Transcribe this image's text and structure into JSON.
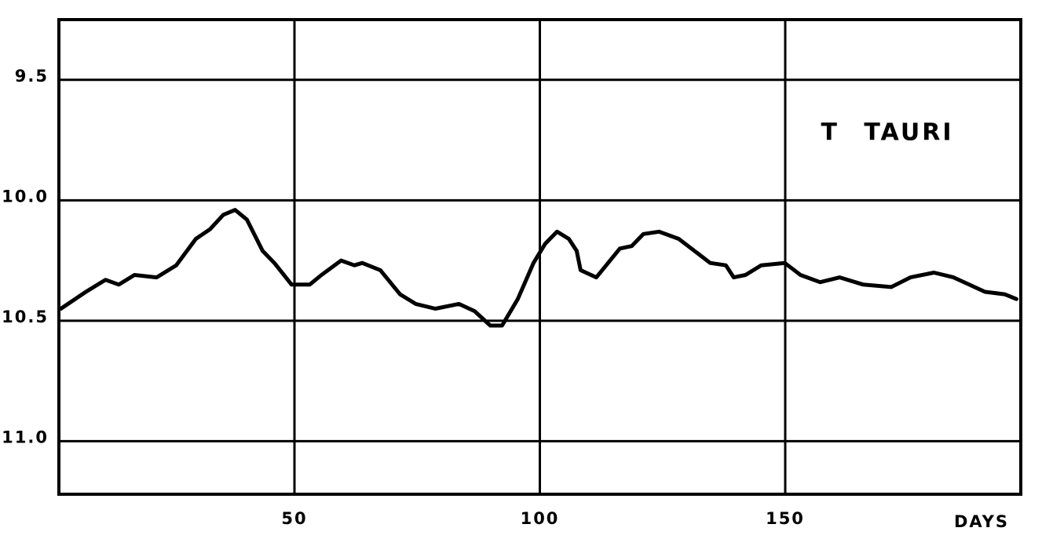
{
  "chart_data": {
    "type": "line",
    "title": "T TAURI",
    "x_label": "DAYS",
    "x": [
      2.4,
      7.5,
      11.5,
      14.2,
      17.4,
      21.9,
      25.9,
      29.9,
      32.8,
      35.5,
      37.9,
      40.3,
      43.5,
      45.9,
      49.4,
      53.1,
      55.5,
      59.5,
      62.2,
      63.8,
      67.5,
      71.5,
      74.7,
      78.7,
      83.5,
      86.7,
      89.9,
      92.3,
      95.5,
      98.7,
      101.1,
      103.5,
      105.9,
      107.5,
      108.3,
      111.5,
      116.3,
      118.7,
      121.1,
      124.3,
      128.3,
      131.5,
      134.7,
      137.9,
      139.5,
      141.9,
      145.1,
      149.9,
      153.1,
      157.1,
      161.1,
      165.9,
      171.6,
      175.5,
      180.3,
      184.3,
      190.7,
      194.7,
      197.1
    ],
    "series": [
      {
        "color": "#000000",
        "values": [
          10.45,
          10.38,
          10.33,
          10.35,
          10.31,
          10.32,
          10.27,
          10.16,
          10.12,
          10.06,
          10.04,
          10.08,
          10.21,
          10.26,
          10.35,
          10.35,
          10.31,
          10.25,
          10.27,
          10.26,
          10.29,
          10.39,
          10.43,
          10.45,
          10.43,
          10.46,
          10.52,
          10.52,
          10.41,
          10.26,
          10.18,
          10.13,
          10.16,
          10.21,
          10.29,
          10.32,
          10.2,
          10.19,
          10.14,
          10.13,
          10.16,
          10.21,
          10.26,
          10.27,
          10.32,
          10.31,
          10.27,
          10.26,
          10.31,
          10.34,
          10.32,
          10.35,
          10.36,
          10.32,
          10.3,
          10.32,
          10.38,
          10.39,
          10.41
        ]
      }
    ],
    "xlim": [
      2,
      198
    ],
    "xticks": [
      50,
      100,
      150
    ],
    "ylim": [
      11.22,
      9.25
    ],
    "yticks": [
      9.5,
      {
        "value": 10,
        "label": "10.0"
      },
      10.5,
      {
        "value": 11,
        "label": "11.0"
      }
    ],
    "grid": true
  }
}
